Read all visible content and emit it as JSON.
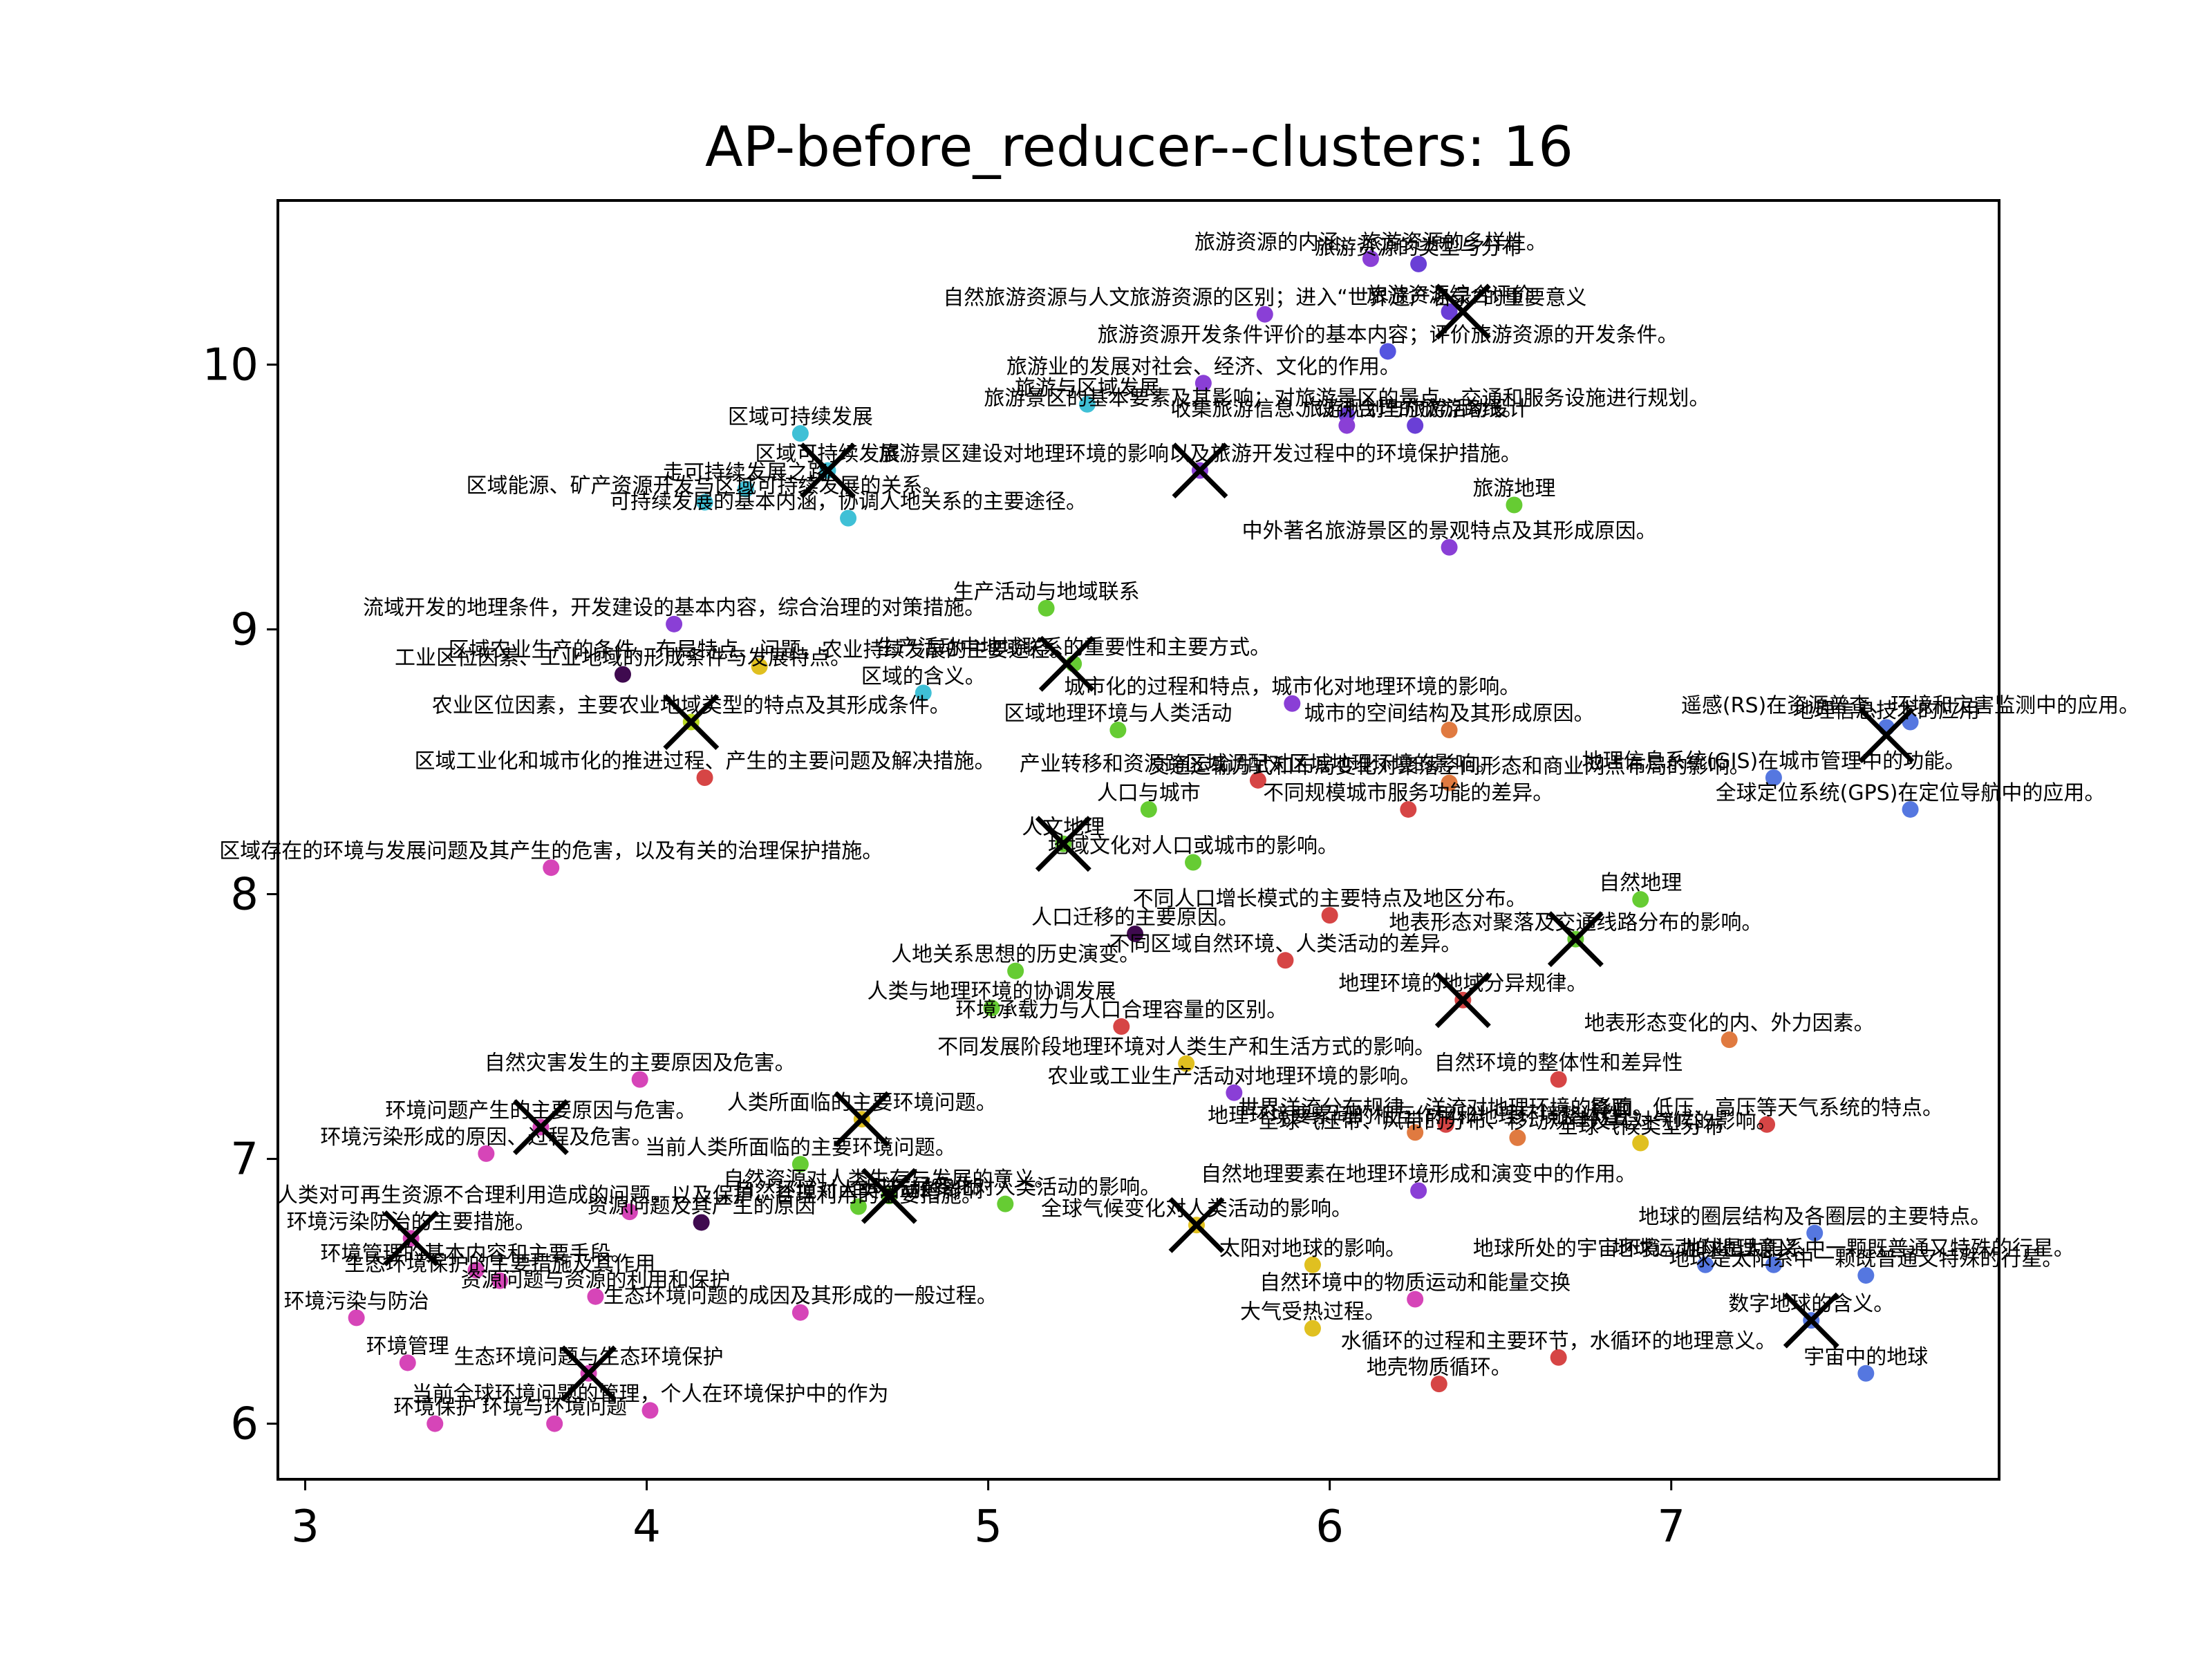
{
  "chart_data": {
    "type": "scatter",
    "title": "AP-before_reducer--clusters: 16",
    "xlabel": "",
    "ylabel": "",
    "xlim": [
      2.92,
      7.96
    ],
    "ylim": [
      5.79,
      10.62
    ],
    "xticks": [
      3,
      4,
      5,
      6,
      7
    ],
    "yticks": [
      6,
      7,
      8,
      9,
      10
    ],
    "grid": false,
    "cluster_centers": [
      {
        "x": 6.39,
        "y": 10.2
      },
      {
        "x": 5.62,
        "y": 9.6
      },
      {
        "x": 4.53,
        "y": 9.6
      },
      {
        "x": 5.23,
        "y": 8.87
      },
      {
        "x": 4.13,
        "y": 8.65
      },
      {
        "x": 7.63,
        "y": 8.6
      },
      {
        "x": 5.22,
        "y": 8.19
      },
      {
        "x": 6.72,
        "y": 7.83
      },
      {
        "x": 6.39,
        "y": 7.6
      },
      {
        "x": 4.63,
        "y": 7.15
      },
      {
        "x": 3.69,
        "y": 7.12
      },
      {
        "x": 4.71,
        "y": 6.86
      },
      {
        "x": 3.31,
        "y": 6.7
      },
      {
        "x": 5.61,
        "y": 6.75
      },
      {
        "x": 7.41,
        "y": 6.39
      },
      {
        "x": 3.83,
        "y": 6.19
      }
    ],
    "points": [
      {
        "x": 6.12,
        "y": 10.4,
        "label": "旅游资源的内涵、旅游资源的多样性。",
        "color": "#8a3fd6"
      },
      {
        "x": 6.26,
        "y": 10.38,
        "label": "旅游资源的类型与分布",
        "color": "#6a3fd6"
      },
      {
        "x": 5.81,
        "y": 10.19,
        "label": "自然旅游资源与人文旅游资源的区别；进入“世界遗产名录”的重要意义",
        "color": "#8a3fd6"
      },
      {
        "x": 6.35,
        "y": 10.2,
        "label": "旅游资源综合评价",
        "color": "#6a3fd6"
      },
      {
        "x": 6.17,
        "y": 10.05,
        "label": "旅游资源开发条件评价的基本内容；评价旅游资源的开发条件。",
        "color": "#5555e0"
      },
      {
        "x": 5.63,
        "y": 9.93,
        "label": "旅游业的发展对社会、经济、文化的作用。",
        "color": "#8a3fd6"
      },
      {
        "x": 5.29,
        "y": 9.85,
        "label": "旅游与区域发展",
        "color": "#3fc0d6"
      },
      {
        "x": 6.05,
        "y": 9.81,
        "label": "旅游景区的基本要素及其影响；对旅游景区的景点、交通和服务设施进行规划。",
        "color": "#6a3fd6"
      },
      {
        "x": 6.05,
        "y": 9.77,
        "label": "收集旅游信息、设计合理的旅游路线。",
        "color": "#8a3fd6"
      },
      {
        "x": 6.25,
        "y": 9.77,
        "label": "旅游规划与旅游活动设计",
        "color": "#6a3fd6"
      },
      {
        "x": 4.45,
        "y": 9.74,
        "label": "区域可持续发展",
        "color": "#3fc0d6"
      },
      {
        "x": 5.62,
        "y": 9.6,
        "label": "旅游景区建设对地理环境的影响以及旅游开发过程中的环境保护措施。",
        "color": "#8a3fd6"
      },
      {
        "x": 4.53,
        "y": 9.6,
        "label": "区域可持续发展",
        "color": "#3fc0d6"
      },
      {
        "x": 4.29,
        "y": 9.53,
        "label": "走可持续发展之路",
        "color": "#3fc0d6"
      },
      {
        "x": 4.17,
        "y": 9.48,
        "label": "区域能源、矿产资源开发与区域可持续发展的关系。",
        "color": "#3fc0d6"
      },
      {
        "x": 6.54,
        "y": 9.47,
        "label": "旅游地理",
        "color": "#66cc33"
      },
      {
        "x": 4.59,
        "y": 9.42,
        "label": "可持续发展的基本内涵，协调人地关系的主要途径。",
        "color": "#3fc0d6"
      },
      {
        "x": 6.35,
        "y": 9.31,
        "label": "中外著名旅游景区的景观特点及其形成原因。",
        "color": "#8a3fd6"
      },
      {
        "x": 5.17,
        "y": 9.08,
        "label": "生产活动与地域联系",
        "color": "#66cc33"
      },
      {
        "x": 4.08,
        "y": 9.02,
        "label": "流域开发的地理条件，开发建设的基本内容，综合治理的对策措施。",
        "color": "#8a3fd6"
      },
      {
        "x": 5.25,
        "y": 8.87,
        "label": "生产活动中地域联系的重要性和主要方式。",
        "color": "#66cc33"
      },
      {
        "x": 3.93,
        "y": 8.83,
        "label": "工业区位因素、工业地域的形成条件与发展特点。",
        "color": "#3f0a4f"
      },
      {
        "x": 4.33,
        "y": 8.86,
        "label": "区域农业生产的条件、布局特点、问题，农业持续发展的主要途径。",
        "color": "#e0c020"
      },
      {
        "x": 4.81,
        "y": 8.76,
        "label": "区域的含义。",
        "color": "#3fc0d6"
      },
      {
        "x": 5.89,
        "y": 8.72,
        "label": "城市化的过程和特点，城市化对地理环境的影响。",
        "color": "#8a3fd6"
      },
      {
        "x": 4.13,
        "y": 8.65,
        "label": "农业区位因素，主要农业地域类型的特点及其形成条件。",
        "color": "#b8d820"
      },
      {
        "x": 7.7,
        "y": 8.65,
        "label": "遥感(RS)在资源普查、环境和灾害监测中的应用。",
        "color": "#5577e0"
      },
      {
        "x": 7.63,
        "y": 8.63,
        "label": "地理信息技术的应用",
        "color": "#5577e0"
      },
      {
        "x": 6.35,
        "y": 8.62,
        "label": "城市的空间结构及其形成原因。",
        "color": "#e07a40"
      },
      {
        "x": 5.38,
        "y": 8.62,
        "label": "区域地理环境与人类活动",
        "color": "#66cc33"
      },
      {
        "x": 4.17,
        "y": 8.44,
        "label": "区域工业化和城市化的推进过程、产生的主要问题及解决措施。",
        "color": "#d64545"
      },
      {
        "x": 5.79,
        "y": 8.43,
        "label": "产业转移和资源跨区域调配对区域地理环境的影响。",
        "color": "#d64545"
      },
      {
        "x": 6.35,
        "y": 8.42,
        "label": "交通运输方式和布局变化对聚落空间形态和商业网点布局的影响。",
        "color": "#e07a40"
      },
      {
        "x": 7.3,
        "y": 8.44,
        "label": "地理信息系统(GIS)在城市管理中的功能。",
        "color": "#5577e0"
      },
      {
        "x": 5.47,
        "y": 8.32,
        "label": "人口与城市",
        "color": "#66cc33"
      },
      {
        "x": 6.23,
        "y": 8.32,
        "label": "不同规模城市服务功能的差异。",
        "color": "#d64545"
      },
      {
        "x": 7.7,
        "y": 8.32,
        "label": "全球定位系统(GPS)在定位导航中的应用。",
        "color": "#5577e0"
      },
      {
        "x": 5.22,
        "y": 8.19,
        "label": "人文地理",
        "color": "#66cc33"
      },
      {
        "x": 5.6,
        "y": 8.12,
        "label": "地域文化对人口或城市的影响。",
        "color": "#66cc33"
      },
      {
        "x": 3.72,
        "y": 8.1,
        "label": "区域存在的环境与发展问题及其产生的危害，以及有关的治理保护措施。",
        "color": "#d645b8"
      },
      {
        "x": 6.0,
        "y": 7.92,
        "label": "不同人口增长模式的主要特点及地区分布。",
        "color": "#d64545"
      },
      {
        "x": 6.91,
        "y": 7.98,
        "label": "自然地理",
        "color": "#66cc33"
      },
      {
        "x": 5.43,
        "y": 7.85,
        "label": "人口迁移的主要原因。",
        "color": "#3f0a4f"
      },
      {
        "x": 6.72,
        "y": 7.83,
        "label": "地表形态对聚落及交通线路分布的影响。",
        "color": "#66cc33"
      },
      {
        "x": 5.87,
        "y": 7.75,
        "label": "不同区域自然环境、人类活动的差异。",
        "color": "#d64545"
      },
      {
        "x": 5.08,
        "y": 7.71,
        "label": "人地关系思想的历史演变。",
        "color": "#66cc33"
      },
      {
        "x": 6.39,
        "y": 7.6,
        "label": "地理环境的地域分异规律。",
        "color": "#d64545"
      },
      {
        "x": 5.01,
        "y": 7.57,
        "label": "人类与地理环境的协调发展",
        "color": "#66cc33"
      },
      {
        "x": 5.39,
        "y": 7.5,
        "label": "环境承载力与人口合理容量的区别。",
        "color": "#d64545"
      },
      {
        "x": 7.17,
        "y": 7.45,
        "label": "地表形态变化的内、外力因素。",
        "color": "#e07a40"
      },
      {
        "x": 5.58,
        "y": 7.36,
        "label": "不同发展阶段地理环境对人类生产和生活方式的影响。",
        "color": "#e0c020"
      },
      {
        "x": 3.98,
        "y": 7.3,
        "label": "自然灾害发生的主要原因及危害。",
        "color": "#d645b8"
      },
      {
        "x": 6.67,
        "y": 7.3,
        "label": "自然环境的整体性和差异性",
        "color": "#d64545"
      },
      {
        "x": 5.72,
        "y": 7.25,
        "label": "农业或工业生产活动对地理环境的影响。",
        "color": "#8a3fd6"
      },
      {
        "x": 6.34,
        "y": 7.13,
        "label": "世界洋流分布规律、洋流对地理环境的影响。",
        "color": "#d64545"
      },
      {
        "x": 7.28,
        "y": 7.13,
        "label": "锋面、低压、高压等天气系统的特点。",
        "color": "#d64545"
      },
      {
        "x": 4.63,
        "y": 7.15,
        "label": "人类所面临的主要环境问题。",
        "color": "#e0c020"
      },
      {
        "x": 3.69,
        "y": 7.12,
        "label": "环境问题产生的主要原因与危害。",
        "color": "#d645b8"
      },
      {
        "x": 6.25,
        "y": 7.1,
        "label": "地理环境要素间的相互作用和地理环境整体性",
        "color": "#e07a40"
      },
      {
        "x": 6.55,
        "y": 7.08,
        "label": "全球气压带、风带的分布、移动规律及其对气候的影响。",
        "color": "#e07a40"
      },
      {
        "x": 6.91,
        "y": 7.06,
        "label": "全球气候类型分布",
        "color": "#e0c020"
      },
      {
        "x": 3.53,
        "y": 7.02,
        "label": "环境污染形成的原因、过程及危害。",
        "color": "#d645b8"
      },
      {
        "x": 4.45,
        "y": 6.98,
        "label": "当前人类所面临的主要环境问题。",
        "color": "#66cc33"
      },
      {
        "x": 6.26,
        "y": 6.88,
        "label": "自然地理要素在地理环境形成和演变中的作用。",
        "color": "#8a3fd6"
      },
      {
        "x": 4.71,
        "y": 6.86,
        "label": "自然资源对人类生存与发展的意义。",
        "color": "#66cc33"
      },
      {
        "x": 4.62,
        "y": 6.82,
        "label": "自然环境对人类活动的影响",
        "color": "#66cc33"
      },
      {
        "x": 3.95,
        "y": 6.8,
        "label": "人类对可再生资源不合理利用造成的问题，以及保护、合理利用的主要措施。",
        "color": "#d645b8"
      },
      {
        "x": 4.16,
        "y": 6.76,
        "label": "资源问题及其产生的原因",
        "color": "#3f0a4f"
      },
      {
        "x": 5.05,
        "y": 6.83,
        "label": "全球气候变化对人类活动的影响。",
        "color": "#66cc33"
      },
      {
        "x": 5.61,
        "y": 6.75,
        "label": "全球气候变化对人类活动的影响。",
        "color": "#e0c020"
      },
      {
        "x": 3.31,
        "y": 6.7,
        "label": "环境污染防治的主要措施。",
        "color": "#d645b8"
      },
      {
        "x": 7.42,
        "y": 6.72,
        "label": "地球的圈层结构及各圈层的主要特点。",
        "color": "#5577e0"
      },
      {
        "x": 5.95,
        "y": 6.6,
        "label": "太阳对地球的影响。",
        "color": "#e0c020"
      },
      {
        "x": 7.1,
        "y": 6.6,
        "label": "地球运动的地理意义",
        "color": "#5577e0"
      },
      {
        "x": 7.3,
        "y": 6.6,
        "label": "地球所处的宇宙环境。地球是太阳系中一颗既普通又特殊的行星。",
        "color": "#5577e0"
      },
      {
        "x": 7.57,
        "y": 6.56,
        "label": "地球是太阳系中一颗既普通又特殊的行星。",
        "color": "#5577e0"
      },
      {
        "x": 3.5,
        "y": 6.58,
        "label": "环境管理的基本内容和主要手段。",
        "color": "#d645b8"
      },
      {
        "x": 3.57,
        "y": 6.54,
        "label": "生态环境保护的主要措施及其作用",
        "color": "#d645b8"
      },
      {
        "x": 3.85,
        "y": 6.48,
        "label": "资源问题与资源的利用和保护",
        "color": "#d645b8"
      },
      {
        "x": 6.25,
        "y": 6.47,
        "label": "自然环境中的物质运动和能量交换",
        "color": "#d645b8"
      },
      {
        "x": 4.45,
        "y": 6.42,
        "label": "生态环境问题的成因及其形成的一般过程。",
        "color": "#d645b8"
      },
      {
        "x": 3.15,
        "y": 6.4,
        "label": "环境污染与防治",
        "color": "#d645b8"
      },
      {
        "x": 7.41,
        "y": 6.39,
        "label": "数字地球的含义。",
        "color": "#5577e0"
      },
      {
        "x": 5.95,
        "y": 6.36,
        "label": "大气受热过程。",
        "color": "#e0c020"
      },
      {
        "x": 6.67,
        "y": 6.25,
        "label": "水循环的过程和主要环节，水循环的地理意义。",
        "color": "#d64545"
      },
      {
        "x": 3.3,
        "y": 6.23,
        "label": "环境管理",
        "color": "#d645b8"
      },
      {
        "x": 3.83,
        "y": 6.19,
        "label": "生态环境问题与生态环境保护",
        "color": "#d645b8"
      },
      {
        "x": 7.57,
        "y": 6.19,
        "label": "宇宙中的地球",
        "color": "#5577e0"
      },
      {
        "x": 6.32,
        "y": 6.15,
        "label": "地壳物质循环。",
        "color": "#d64545"
      },
      {
        "x": 4.01,
        "y": 6.05,
        "label": "当前全球环境问题的管理，个人在环境保护中的作为",
        "color": "#d645b8"
      },
      {
        "x": 3.38,
        "y": 6.0,
        "label": "环境保护",
        "color": "#d645b8"
      },
      {
        "x": 3.73,
        "y": 6.0,
        "label": "环境与环境问题",
        "color": "#d645b8"
      }
    ]
  }
}
